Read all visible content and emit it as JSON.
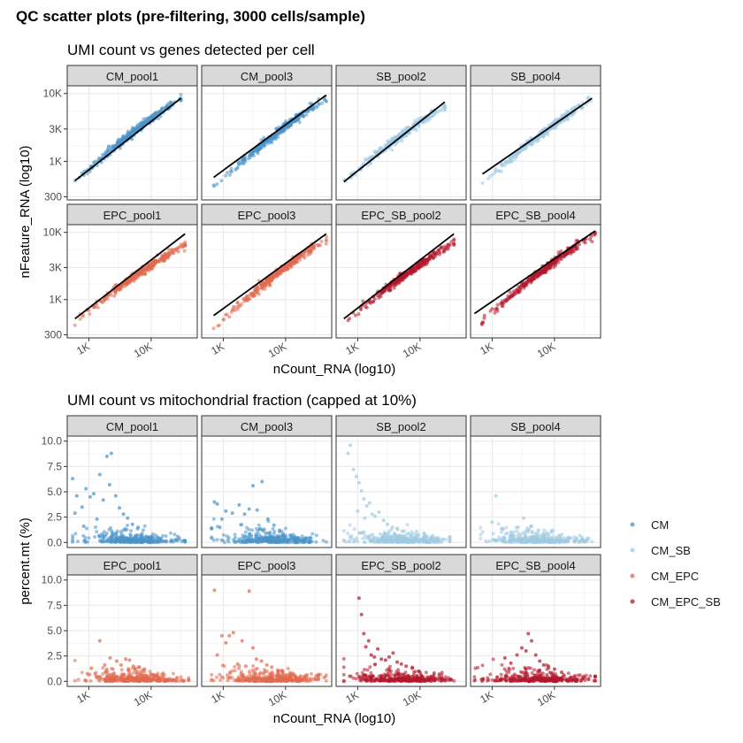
{
  "title": "QC scatter plots (pre-filtering, 3000 cells/sample)",
  "colors": {
    "CM": "#4a93c8",
    "CM_SB": "#9ecae1",
    "CM_EPC": "#e06a4e",
    "CM_EPC_SB": "#b2182b",
    "strip_fill": "#d9d9d9",
    "grid_major": "#ebebeb",
    "grid_minor": "#f5f5f5",
    "trend": "#000000"
  },
  "legend": {
    "entries": [
      {
        "label": "CM",
        "group": "CM"
      },
      {
        "label": "CM_SB",
        "group": "CM_SB"
      },
      {
        "label": "CM_EPC",
        "group": "CM_EPC"
      },
      {
        "label": "CM_EPC_SB",
        "group": "CM_EPC_SB"
      }
    ]
  },
  "chart_data": [
    {
      "type": "scatter",
      "title": "UMI count vs genes detected per cell",
      "xlabel": "nCount_RNA (log10)",
      "ylabel": "nFeature_RNA (log10)",
      "x_scale": "log10",
      "y_scale": "log10",
      "xlim": [
        450,
        55000
      ],
      "ylim": [
        270,
        13000
      ],
      "x_ticks": [
        {
          "value": 1000,
          "label": "1K"
        },
        {
          "value": 10000,
          "label": "10K"
        }
      ],
      "y_ticks": [
        {
          "value": 300,
          "label": "300"
        },
        {
          "value": 1000,
          "label": "1K"
        },
        {
          "value": 3000,
          "label": "3K"
        },
        {
          "value": 10000,
          "label": "10K"
        }
      ],
      "grid": true,
      "trend_line": true,
      "panels": [
        {
          "label": "CM_pool1",
          "group": "CM",
          "x_range": [
            600,
            30000
          ],
          "y_start": 500,
          "y_end": 8500,
          "line_start": 520,
          "line_end": 8500
        },
        {
          "label": "CM_pool3",
          "group": "CM",
          "x_range": [
            700,
            45000
          ],
          "y_start": 420,
          "y_end": 8500,
          "line_start": 580,
          "line_end": 9500
        },
        {
          "label": "SB_pool2",
          "group": "CM_SB",
          "x_range": [
            600,
            25000
          ],
          "y_start": 500,
          "y_end": 6500,
          "line_start": 500,
          "line_end": 7500
        },
        {
          "label": "SB_pool4",
          "group": "CM_SB",
          "x_range": [
            700,
            40000
          ],
          "y_start": 470,
          "y_end": 8500,
          "line_start": 650,
          "line_end": 8500
        },
        {
          "label": "EPC_pool1",
          "group": "CM_EPC",
          "x_range": [
            600,
            35000
          ],
          "y_start": 480,
          "y_end": 6500,
          "line_start": 520,
          "line_end": 9500
        },
        {
          "label": "EPC_pool3",
          "group": "CM_EPC",
          "x_range": [
            700,
            45000
          ],
          "y_start": 380,
          "y_end": 8000,
          "line_start": 580,
          "line_end": 9500
        },
        {
          "label": "EPC_SB_pool2",
          "group": "CM_EPC_SB",
          "x_range": [
            600,
            35000
          ],
          "y_start": 450,
          "y_end": 7000,
          "line_start": 520,
          "line_end": 9500
        },
        {
          "label": "EPC_SB_pool4",
          "group": "CM_EPC_SB",
          "x_range": [
            520,
            45000
          ],
          "y_start": 380,
          "y_end": 9500,
          "line_start": 620,
          "line_end": 10500
        }
      ]
    },
    {
      "type": "scatter",
      "title": "UMI count vs mitochondrial fraction (capped at 10%)",
      "xlabel": "nCount_RNA (log10)",
      "ylabel": "percent.mt (%)",
      "x_scale": "log10",
      "y_scale": "linear",
      "xlim": [
        450,
        55000
      ],
      "ylim": [
        -0.5,
        10.5
      ],
      "x_ticks": [
        {
          "value": 1000,
          "label": "1K"
        },
        {
          "value": 10000,
          "label": "10K"
        }
      ],
      "y_ticks": [
        {
          "value": 0,
          "label": "0.0"
        },
        {
          "value": 2.5,
          "label": "2.5"
        },
        {
          "value": 5,
          "label": "5.0"
        },
        {
          "value": 7.5,
          "label": "7.5"
        },
        {
          "value": 10,
          "label": "10.0"
        }
      ],
      "grid": true,
      "trend_line": false,
      "panels": [
        {
          "label": "CM_pool1",
          "group": "CM",
          "x_range": [
            550,
            35000
          ],
          "outliers": [
            [
              550,
              6.3
            ],
            [
              640,
              4.6
            ],
            [
              780,
              3.5
            ],
            [
              900,
              5.3
            ],
            [
              1050,
              4.5
            ],
            [
              1200,
              4.8
            ],
            [
              1350,
              2.3
            ],
            [
              1500,
              6.7
            ],
            [
              1700,
              4.2
            ],
            [
              1950,
              8.5
            ],
            [
              2150,
              5.7
            ],
            [
              2300,
              8.8
            ],
            [
              2700,
              4.6
            ],
            [
              3100,
              3.4
            ],
            [
              3600,
              2.8
            ],
            [
              4200,
              2.4
            ],
            [
              5000,
              1.8
            ],
            [
              6200,
              1.5
            ],
            [
              600,
              2.9
            ],
            [
              830,
              1.6
            ]
          ]
        },
        {
          "label": "CM_pool3",
          "group": "CM",
          "x_range": [
            650,
            45000
          ],
          "outliers": [
            [
              720,
              4.0
            ],
            [
              800,
              3.8
            ],
            [
              950,
              2.3
            ],
            [
              1100,
              3.1
            ],
            [
              1400,
              2.9
            ],
            [
              1800,
              3.7
            ],
            [
              2200,
              2.8
            ],
            [
              2600,
              3.3
            ],
            [
              3000,
              5.6
            ],
            [
              3500,
              3.2
            ],
            [
              4200,
              6.0
            ],
            [
              5200,
              2.3
            ],
            [
              6500,
              1.7
            ],
            [
              8000,
              1.2
            ],
            [
              880,
              1.5
            ]
          ]
        },
        {
          "label": "SB_pool2",
          "group": "CM_SB",
          "x_range": [
            600,
            30000
          ],
          "outliers": [
            [
              700,
              8.8
            ],
            [
              760,
              9.6
            ],
            [
              850,
              7.2
            ],
            [
              950,
              6.5
            ],
            [
              1050,
              5.9
            ],
            [
              1150,
              5.1
            ],
            [
              1250,
              4.3
            ],
            [
              1400,
              3.6
            ],
            [
              1550,
              3.9
            ],
            [
              1700,
              2.8
            ],
            [
              1900,
              2.6
            ],
            [
              2200,
              3.0
            ],
            [
              2600,
              2.2
            ],
            [
              3000,
              1.8
            ],
            [
              3600,
              1.5
            ],
            [
              4300,
              1.4
            ],
            [
              5200,
              1.1
            ],
            [
              6500,
              0.9
            ],
            [
              1000,
              3.1
            ],
            [
              1300,
              2.4
            ]
          ]
        },
        {
          "label": "SB_pool4",
          "group": "CM_SB",
          "x_range": [
            650,
            40000
          ],
          "outliers": [
            [
              1000,
              2.0
            ],
            [
              1150,
              4.6
            ],
            [
              1500,
              1.3
            ],
            [
              2000,
              1.0
            ],
            [
              2600,
              1.5
            ],
            [
              3200,
              2.4
            ],
            [
              4200,
              1.6
            ],
            [
              5500,
              1.2
            ],
            [
              7000,
              0.8
            ],
            [
              9000,
              1.0
            ],
            [
              12000,
              0.7
            ]
          ]
        },
        {
          "label": "EPC_pool1",
          "group": "CM_EPC",
          "x_range": [
            600,
            40000
          ],
          "outliers": [
            [
              1500,
              4.0
            ],
            [
              2200,
              2.3
            ],
            [
              2800,
              2.0
            ],
            [
              3300,
              1.6
            ],
            [
              3900,
              2.2
            ],
            [
              4500,
              2.1
            ],
            [
              5200,
              1.5
            ],
            [
              6300,
              1.4
            ],
            [
              7800,
              1.2
            ],
            [
              1100,
              1.3
            ],
            [
              1800,
              1.6
            ]
          ]
        },
        {
          "label": "EPC_pool3",
          "group": "CM_EPC",
          "x_range": [
            650,
            45000
          ],
          "outliers": [
            [
              720,
              9.0
            ],
            [
              800,
              2.6
            ],
            [
              950,
              4.5
            ],
            [
              1100,
              3.8
            ],
            [
              1250,
              4.5
            ],
            [
              1450,
              4.8
            ],
            [
              1700,
              1.7
            ],
            [
              2000,
              4.0
            ],
            [
              2300,
              1.5
            ],
            [
              2600,
              8.9
            ],
            [
              3000,
              3.3
            ],
            [
              3400,
              2.2
            ],
            [
              4100,
              2.0
            ],
            [
              5000,
              1.6
            ],
            [
              6000,
              1.4
            ],
            [
              7500,
              1.1
            ],
            [
              9000,
              0.9
            ]
          ]
        },
        {
          "label": "EPC_SB_pool2",
          "group": "CM_EPC_SB",
          "x_range": [
            600,
            35000
          ],
          "outliers": [
            [
              1050,
              8.2
            ],
            [
              1150,
              6.6
            ],
            [
              1250,
              4.7
            ],
            [
              1350,
              3.4
            ],
            [
              1500,
              4.0
            ],
            [
              1650,
              2.6
            ],
            [
              1850,
              2.4
            ],
            [
              2100,
              3.2
            ],
            [
              2400,
              2.2
            ],
            [
              2800,
              2.1
            ],
            [
              3200,
              2.4
            ],
            [
              3700,
              2.8
            ],
            [
              4300,
              1.9
            ],
            [
              5000,
              1.7
            ],
            [
              6000,
              1.5
            ],
            [
              7500,
              1.3
            ],
            [
              9500,
              1.0
            ]
          ]
        },
        {
          "label": "EPC_SB_pool4",
          "group": "CM_EPC_SB",
          "x_range": [
            520,
            45000
          ],
          "outliers": [
            [
              1600,
              2.3
            ],
            [
              2000,
              1.8
            ],
            [
              2500,
              2.6
            ],
            [
              3000,
              3.3
            ],
            [
              3500,
              3.0
            ],
            [
              3800,
              4.7
            ],
            [
              4300,
              4.0
            ],
            [
              5000,
              2.6
            ],
            [
              5800,
              2.0
            ],
            [
              6700,
              1.6
            ],
            [
              8000,
              1.5
            ],
            [
              10000,
              1.2
            ],
            [
              13000,
              0.9
            ]
          ]
        }
      ]
    }
  ]
}
